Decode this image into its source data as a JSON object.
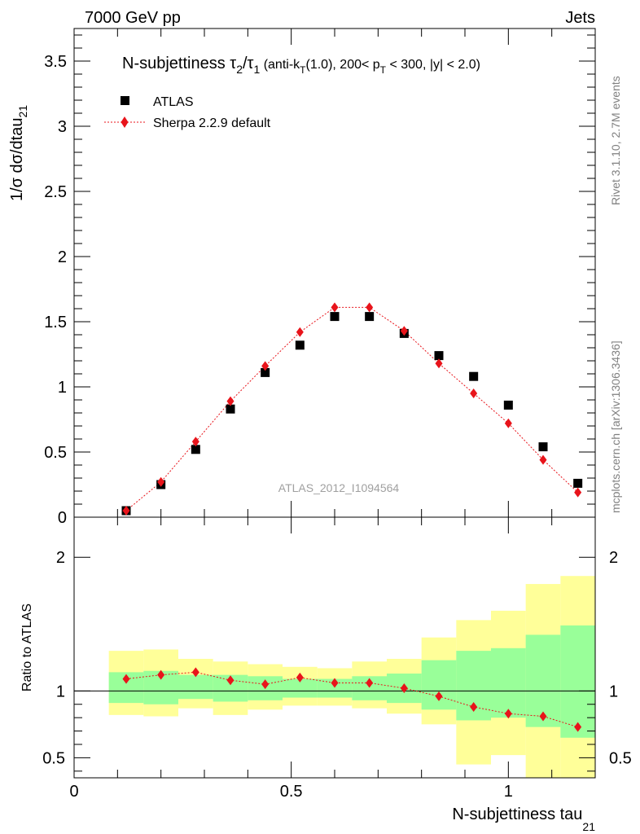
{
  "header": {
    "left": "7000 GeV pp",
    "right": "Jets"
  },
  "side_labels": {
    "rivet": "Rivet 3.1.10,  2.7M events",
    "mcplots": "mcplots.cern.ch [arXiv:1306.3436]"
  },
  "watermark": "ATLAS_2012_I1094564",
  "chart_data": [
    {
      "type": "scatter",
      "panel": "main",
      "title": {
        "main": "N-subjettiness τ",
        "sub1": "2",
        "slash": "/τ",
        "sub2": "1",
        "cut1": " (anti-k",
        "cut_sub": "T",
        "cut2": "(1.0), 200< p",
        "cut_sub2": "T",
        "cut3": " < 300, |y| < 2.0)"
      },
      "ylabel": {
        "main": "1/σ dσ/dtau",
        "sub": "21"
      },
      "xlim": [
        0,
        1.2
      ],
      "ylim": [
        0,
        3.75
      ],
      "yticks": [
        {
          "v": 0,
          "label": "0"
        },
        {
          "v": 0.5,
          "label": "0.5"
        },
        {
          "v": 1,
          "label": "1"
        },
        {
          "v": 1.5,
          "label": "1.5"
        },
        {
          "v": 2,
          "label": "2"
        },
        {
          "v": 2.5,
          "label": "2.5"
        },
        {
          "v": 3,
          "label": "3"
        },
        {
          "v": 3.5,
          "label": "3.5"
        }
      ],
      "legend_position": "top-left",
      "x": [
        0.12,
        0.2,
        0.28,
        0.36,
        0.44,
        0.52,
        0.6,
        0.68,
        0.76,
        0.84,
        0.92,
        1.0,
        1.08,
        1.16
      ],
      "series": [
        {
          "name": "ATLAS",
          "marker": "square",
          "color": "#000000",
          "values": [
            0.05,
            0.25,
            0.52,
            0.83,
            1.11,
            1.32,
            1.54,
            1.54,
            1.41,
            1.24,
            1.08,
            0.86,
            0.54,
            0.26
          ]
        },
        {
          "name": "Sherpa 2.2.9 default",
          "marker": "diamond",
          "line": "dotted",
          "color": "#e8141b",
          "values": [
            0.05,
            0.27,
            0.58,
            0.89,
            1.16,
            1.42,
            1.61,
            1.61,
            1.43,
            1.18,
            0.95,
            0.72,
            0.44,
            0.19
          ]
        }
      ]
    },
    {
      "type": "scatter",
      "panel": "ratio",
      "ylabel": "Ratio to ATLAS",
      "xlabel": {
        "main": "N-subjettiness tau",
        "sub": "21"
      },
      "xlim": [
        0,
        1.2
      ],
      "ylim": [
        0.35,
        2.3
      ],
      "xticks": [
        {
          "v": 0,
          "label": "0"
        },
        {
          "v": 0.5,
          "label": "0.5"
        },
        {
          "v": 1,
          "label": "1"
        }
      ],
      "yticks": [
        {
          "v": 0.5,
          "label": "0.5"
        },
        {
          "v": 1,
          "label": "1"
        },
        {
          "v": 2,
          "label": "2"
        }
      ],
      "reference_line": 1,
      "band_edges": [
        0.08,
        0.16,
        0.24,
        0.32,
        0.4,
        0.48,
        0.56,
        0.64,
        0.72,
        0.8,
        0.88,
        0.96,
        1.04,
        1.12,
        1.2
      ],
      "band_outer_color": "#ffff99",
      "band_inner_color": "#99ff99",
      "band_outer": {
        "lo": [
          0.82,
          0.81,
          0.87,
          0.82,
          0.86,
          0.89,
          0.89,
          0.87,
          0.83,
          0.75,
          0.45,
          0.52,
          0.32,
          0.32
        ],
        "hi": [
          1.3,
          1.31,
          1.24,
          1.22,
          1.2,
          1.18,
          1.17,
          1.22,
          1.24,
          1.4,
          1.53,
          1.6,
          1.8,
          1.86
        ]
      },
      "band_inner": {
        "lo": [
          0.91,
          0.9,
          0.94,
          0.92,
          0.93,
          0.95,
          0.95,
          0.93,
          0.91,
          0.86,
          0.78,
          0.8,
          0.73,
          0.65
        ]
      },
      "band_inner_hi": [
        1.14,
        1.15,
        1.12,
        1.12,
        1.11,
        1.09,
        1.09,
        1.11,
        1.13,
        1.23,
        1.3,
        1.32,
        1.42,
        1.49
      ],
      "series": [
        {
          "name": "Sherpa 2.2.9 default",
          "values": [
            1.09,
            1.12,
            1.14,
            1.08,
            1.05,
            1.1,
            1.06,
            1.06,
            1.02,
            0.96,
            0.88,
            0.83,
            0.81,
            0.73
          ]
        }
      ]
    }
  ]
}
